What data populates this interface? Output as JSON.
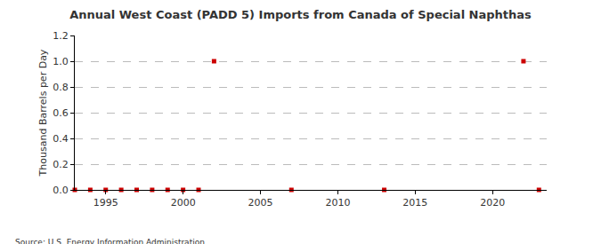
{
  "chart_data": {
    "type": "scatter",
    "title": "Annual West Coast (PADD 5) Imports from Canada of Special Naphthas",
    "y_label": "Thousand Barrels per Day",
    "source": "Source: U.S. Energy Information Administration",
    "x": [
      1993,
      1994,
      1995,
      1996,
      1997,
      1998,
      1999,
      2000,
      2001,
      2002,
      2007,
      2013,
      2022,
      2023
    ],
    "values": [
      0,
      0,
      0,
      0,
      0,
      0,
      0,
      0,
      0,
      1,
      0,
      0,
      1,
      0
    ],
    "color": "#cc0000",
    "marker": "square",
    "xlim": [
      1993,
      2023.5
    ],
    "xticks": [
      1995,
      2000,
      2005,
      2010,
      2015,
      2020
    ],
    "ylim": [
      0,
      1.2
    ],
    "yticks": [
      {
        "value": 0,
        "label": "0.0"
      },
      0.2,
      0.4,
      0.6,
      0.8,
      {
        "value": 1,
        "label": "1.0"
      },
      1.2
    ],
    "grid": true
  }
}
